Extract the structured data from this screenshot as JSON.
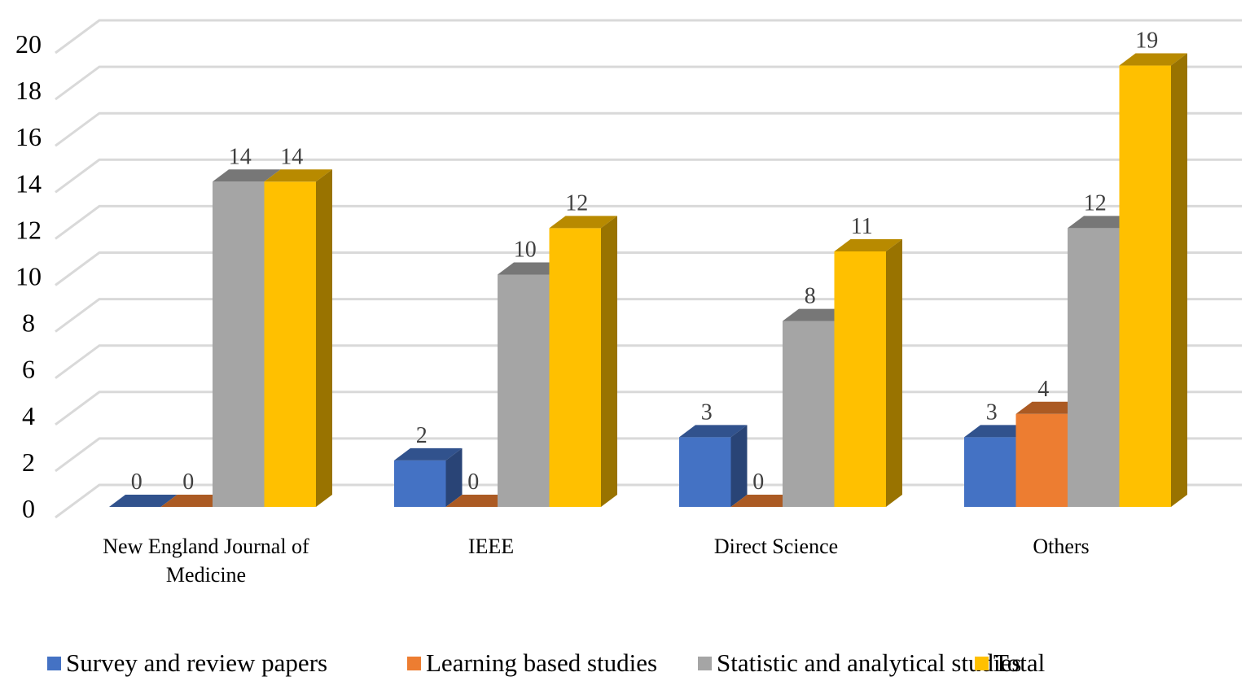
{
  "chart_data": {
    "type": "bar",
    "style": "3d-clustered-column",
    "title": "",
    "xlabel": "",
    "ylabel": "",
    "ylim": [
      0,
      20
    ],
    "yticks": [
      0,
      2,
      4,
      6,
      8,
      10,
      12,
      14,
      16,
      18,
      20
    ],
    "grid": true,
    "legend_position": "bottom",
    "categories": [
      [
        "New England Journal of",
        "Medicine"
      ],
      [
        "IEEE"
      ],
      [
        "Direct Science"
      ],
      [
        "Others"
      ]
    ],
    "series": [
      {
        "name": "Survey and review papers",
        "color": "#4472C4",
        "values": [
          0,
          2,
          3,
          3
        ]
      },
      {
        "name": "Learning based studies",
        "color": "#ED7D31",
        "values": [
          0,
          0,
          0,
          4
        ]
      },
      {
        "name": "Statistic and analytical studies",
        "color": "#A5A5A5",
        "values": [
          14,
          10,
          8,
          12
        ]
      },
      {
        "name": "Total",
        "color": "#FFC000",
        "values": [
          14,
          12,
          11,
          19
        ]
      }
    ],
    "data_labels": true
  }
}
